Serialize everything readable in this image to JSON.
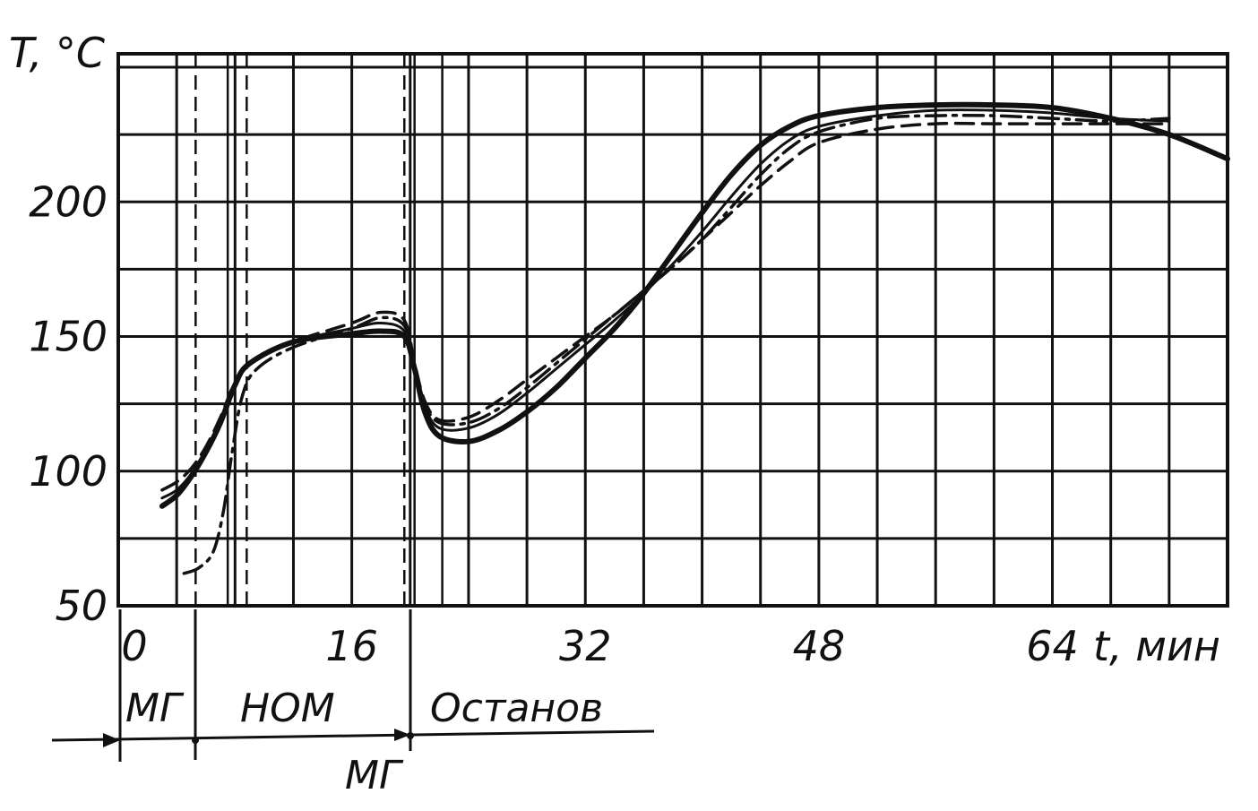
{
  "chart_data": {
    "type": "line",
    "title": "",
    "ylabel": "T, °C",
    "xlabel": "t, мин",
    "xlim": [
      0,
      76
    ],
    "ylim": [
      50,
      255
    ],
    "x_ticks": [
      0,
      16,
      32,
      48,
      64
    ],
    "x_tick_labels": [
      "0",
      "16",
      "32",
      "48",
      "64"
    ],
    "y_ticks": [
      50,
      100,
      150,
      200
    ],
    "y_tick_labels": [
      "50",
      "100",
      "150",
      "200"
    ],
    "grid": true,
    "legend": "none",
    "series": [
      {
        "style": "solid-thick",
        "x": [
          3,
          4,
          5,
          6,
          7,
          8,
          9,
          12,
          16,
          18,
          19.6,
          20.3,
          21,
          22,
          24,
          26,
          28,
          30,
          32,
          34,
          36,
          38,
          40,
          42,
          44,
          46,
          48,
          52,
          56,
          60,
          64,
          68,
          72,
          76
        ],
        "y": [
          87,
          91,
          98,
          107,
          118,
          132,
          140,
          148,
          151,
          152,
          150,
          138,
          122,
          113,
          111,
          115,
          122,
          131,
          142,
          153,
          166,
          181,
          196,
          210,
          221,
          228,
          232,
          235,
          236,
          236,
          235,
          231,
          225,
          216
        ]
      },
      {
        "style": "dashed",
        "x": [
          3,
          4,
          5,
          6,
          7,
          8,
          9,
          12,
          16,
          18,
          19.6,
          20.3,
          21,
          22,
          24,
          26,
          28,
          30,
          32,
          34,
          36,
          38,
          40,
          42,
          44,
          46,
          48,
          52,
          56,
          60,
          64,
          68,
          72
        ],
        "y": [
          93,
          96,
          101,
          109,
          120,
          133,
          140,
          148,
          155,
          159,
          156,
          140,
          126,
          119,
          120,
          126,
          134,
          142,
          150,
          158,
          167,
          176,
          186,
          196,
          206,
          215,
          222,
          227,
          229,
          229,
          229,
          229,
          229
        ]
      },
      {
        "style": "dash-dot",
        "x": [
          4.5,
          5.5,
          6.5,
          7.2,
          7.8,
          8.5,
          9.5,
          12,
          16,
          18,
          19.6,
          20.3,
          21,
          22,
          24,
          26,
          28,
          30,
          32,
          34,
          36,
          38,
          40,
          42,
          44,
          46,
          48,
          52,
          56,
          60,
          64,
          68,
          72
        ],
        "y": [
          62,
          64,
          70,
          85,
          107,
          128,
          138,
          146,
          153,
          157,
          154,
          139,
          125,
          118,
          118,
          123,
          131,
          140,
          149,
          158,
          167,
          176,
          186,
          198,
          210,
          220,
          226,
          231,
          232,
          232,
          231,
          230,
          231
        ]
      },
      {
        "style": "solid-thin",
        "x": [
          3,
          4,
          5,
          6,
          7,
          8,
          9,
          12,
          16,
          18,
          19.6,
          20.3,
          21,
          22,
          24,
          26,
          28,
          30,
          32,
          34,
          36,
          38,
          40,
          42,
          44,
          46,
          48,
          52,
          56,
          60,
          64,
          68,
          72
        ],
        "y": [
          90,
          93,
          99,
          108,
          119,
          133,
          140,
          148,
          153,
          155,
          152,
          139,
          124,
          116,
          116,
          121,
          129,
          138,
          147,
          156,
          166,
          177,
          189,
          202,
          214,
          223,
          228,
          232,
          234,
          234,
          233,
          231,
          230
        ]
      }
    ],
    "vertical_markers": [
      {
        "x": 5.3,
        "style": "dashed"
      },
      {
        "x": 7.5,
        "style": "solid"
      },
      {
        "x": 8.8,
        "style": "dashed"
      },
      {
        "x": 19.6,
        "style": "dashed"
      },
      {
        "x": 20.3,
        "style": "solid"
      },
      {
        "x": 22.2,
        "style": "solid"
      }
    ],
    "phases": [
      {
        "label": "МГ",
        "x_start": 0,
        "x_end": 5.3
      },
      {
        "label": "НОМ",
        "x_start": 5.3,
        "x_end": 20
      },
      {
        "label": "МГ",
        "x_start": 20,
        "x_end": 20
      },
      {
        "label": "Останов",
        "x_start": 20,
        "x_end": 37
      }
    ]
  }
}
